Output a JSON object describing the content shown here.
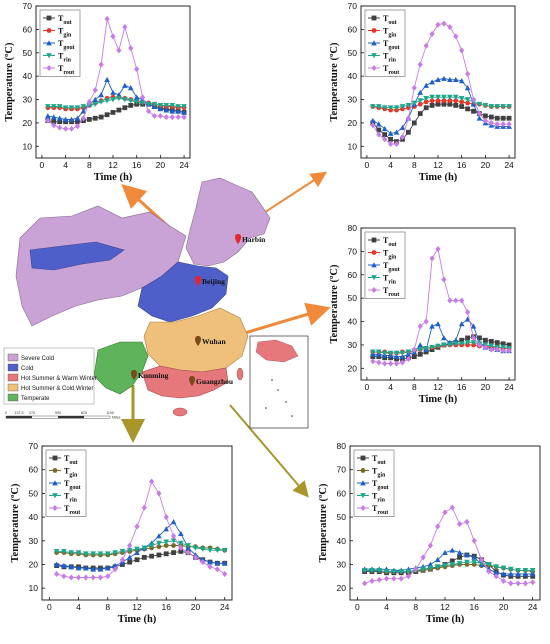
{
  "colors": {
    "T_out": "#404040",
    "T_gin": "#e8372a",
    "T_gout": "#1f5fc9",
    "T_rin": "#1fa78b",
    "T_rout": "#c77ce8",
    "T_gin_alt": "#7a6a2a",
    "arrow_orange": "#f08a3a",
    "arrow_olive": "#a8962a",
    "zone_severe_cold": "#c9a2d6",
    "zone_cold": "#4f5fc9",
    "zone_hot_summer_warm_winter": "#e6777a",
    "zone_hot_summer_cold_winter": "#eec07a",
    "zone_temperate": "#5fb35a"
  },
  "map": {
    "cities": [
      {
        "name": "Harbin"
      },
      {
        "name": "Beijing"
      },
      {
        "name": "Wuhan"
      },
      {
        "name": "Kunming"
      },
      {
        "name": "Guangzhou"
      }
    ],
    "legend": [
      {
        "label": "Severe Cold",
        "color_key": "zone_severe_cold"
      },
      {
        "label": "Cold",
        "color_key": "zone_cold"
      },
      {
        "label": "Hot Summer & Warm Winter",
        "color_key": "zone_hot_summer_warm_winter"
      },
      {
        "label": "Hot Summer & Cold Winter",
        "color_key": "zone_hot_summer_cold_winter"
      },
      {
        "label": "Temperate",
        "color_key": "zone_temperate"
      }
    ],
    "scale_ticks": [
      "0",
      "137.5",
      "275",
      "550",
      "825",
      "1100"
    ],
    "scale_unit": "Miles"
  },
  "chart_data": [
    {
      "type": "line",
      "panel": "top-left",
      "xlabel": "Time (h)",
      "ylabel": "Temperature (ºC)",
      "xlim": [
        -1,
        25
      ],
      "ylim": [
        5,
        70
      ],
      "xticks": [
        0,
        4,
        8,
        12,
        16,
        20,
        24
      ],
      "yticks": [
        10,
        20,
        30,
        40,
        50,
        60,
        70
      ],
      "x": [
        1,
        2,
        3,
        4,
        5,
        6,
        7,
        8,
        9,
        10,
        11,
        12,
        13,
        14,
        15,
        16,
        17,
        18,
        19,
        20,
        21,
        22,
        23,
        24
      ],
      "series": [
        {
          "name": "T_out",
          "color_key": "T_out",
          "marker": "square",
          "values": [
            21,
            20.5,
            20.5,
            20.5,
            20.5,
            20.5,
            21,
            21.5,
            22,
            22.5,
            23.5,
            24.5,
            25.5,
            26.5,
            27.5,
            28,
            28,
            28,
            27,
            26.5,
            26,
            25.5,
            25,
            24.5
          ]
        },
        {
          "name": "T_gin",
          "color_key": "T_gin",
          "marker": "circle",
          "values": [
            26.5,
            26.5,
            26.5,
            26,
            26,
            26,
            26.5,
            27.5,
            28.5,
            29.5,
            30.5,
            31,
            31,
            30.5,
            30,
            29.5,
            29,
            28.5,
            28,
            27.5,
            27,
            27,
            26.5,
            26.5
          ]
        },
        {
          "name": "T_gout",
          "color_key": "T_gout",
          "marker": "triangle",
          "values": [
            23,
            22.5,
            22,
            21.5,
            21.5,
            22,
            25,
            28,
            30,
            32,
            38.5,
            33,
            32,
            36,
            35,
            31,
            30,
            28,
            27,
            26,
            25.5,
            25,
            25,
            24.5
          ]
        },
        {
          "name": "T_rin",
          "color_key": "T_rin",
          "marker": "triangle-down",
          "values": [
            27,
            27,
            27,
            26.5,
            26.5,
            26.5,
            27,
            27.5,
            28,
            29,
            29.5,
            30,
            30.5,
            30,
            29.5,
            29,
            28.5,
            28,
            28,
            27.5,
            27.5,
            27.5,
            27,
            27
          ]
        },
        {
          "name": "T_rout",
          "color_key": "T_rout",
          "marker": "diamond",
          "values": [
            21,
            19,
            18,
            17.5,
            17.5,
            18.5,
            22,
            29,
            34,
            45,
            64.5,
            57,
            51,
            61,
            52,
            43,
            31,
            25,
            23,
            23,
            22.5,
            22.5,
            22.5,
            22.5
          ]
        }
      ]
    },
    {
      "type": "line",
      "panel": "top-right",
      "xlabel": "Time (h)",
      "ylabel": "Temperature (ºC)",
      "xlim": [
        -1,
        25
      ],
      "ylim": [
        5,
        70
      ],
      "xticks": [
        0,
        4,
        8,
        12,
        16,
        20,
        24
      ],
      "yticks": [
        10,
        20,
        30,
        40,
        50,
        60,
        70
      ],
      "x": [
        1,
        2,
        3,
        4,
        5,
        6,
        7,
        8,
        9,
        10,
        11,
        12,
        13,
        14,
        15,
        16,
        17,
        18,
        19,
        20,
        21,
        22,
        23,
        24
      ],
      "series": [
        {
          "name": "T_out",
          "color_key": "T_out",
          "marker": "square",
          "values": [
            20,
            17,
            15,
            13,
            12,
            13,
            16,
            20,
            24,
            26.5,
            27.5,
            28,
            28,
            28,
            27.5,
            27,
            26,
            25,
            24,
            23,
            22.5,
            22,
            22,
            22
          ]
        },
        {
          "name": "T_gin",
          "color_key": "T_gin",
          "marker": "circle",
          "values": [
            27,
            26.5,
            26,
            25.5,
            25.5,
            26,
            26.5,
            27,
            28,
            29,
            29.5,
            29.5,
            29.5,
            29.5,
            29.5,
            29,
            28.5,
            28,
            28,
            27.5,
            27,
            27,
            27,
            27
          ]
        },
        {
          "name": "T_gout",
          "color_key": "T_gout",
          "marker": "triangle",
          "values": [
            21,
            19.5,
            17.5,
            15.5,
            16,
            18,
            22,
            28,
            33,
            36,
            37.5,
            38.5,
            39,
            38.5,
            38.5,
            38,
            35,
            28,
            22,
            20,
            19,
            18.5,
            18.5,
            18.5
          ]
        },
        {
          "name": "T_rin",
          "color_key": "T_rin",
          "marker": "triangle-down",
          "values": [
            27,
            27,
            26.5,
            26.5,
            26.5,
            27,
            27.5,
            28.5,
            29.5,
            30.5,
            31,
            31,
            31,
            31,
            31,
            30.5,
            30,
            29,
            28,
            27.5,
            27,
            27,
            27,
            27
          ]
        },
        {
          "name": "T_rout",
          "color_key": "T_rout",
          "marker": "diamond",
          "values": [
            19,
            15,
            13,
            11,
            11,
            14,
            22,
            35,
            45,
            53,
            58,
            62,
            62.5,
            61,
            57,
            51,
            41,
            30,
            24,
            21,
            20,
            19.5,
            19.5,
            19.5
          ]
        }
      ]
    },
    {
      "type": "line",
      "panel": "middle-right",
      "xlabel": "Time (h)",
      "ylabel": "Temperature (ºC)",
      "xlim": [
        -1,
        25
      ],
      "ylim": [
        15,
        80
      ],
      "xticks": [
        0,
        4,
        8,
        12,
        16,
        20,
        24
      ],
      "yticks": [
        20,
        30,
        40,
        50,
        60,
        70,
        80
      ],
      "x": [
        1,
        2,
        3,
        4,
        5,
        6,
        7,
        8,
        9,
        10,
        11,
        12,
        13,
        14,
        15,
        16,
        17,
        18,
        19,
        20,
        21,
        22,
        23,
        24
      ],
      "series": [
        {
          "name": "T_out",
          "color_key": "T_out",
          "marker": "square",
          "values": [
            25,
            25,
            24.5,
            24.5,
            24,
            24,
            24.5,
            25,
            26,
            27,
            28,
            29,
            30,
            30.5,
            31,
            32,
            33,
            33.5,
            33,
            32,
            31.5,
            31,
            30.5,
            30
          ]
        },
        {
          "name": "T_gin",
          "color_key": "T_gin",
          "marker": "circle",
          "values": [
            27,
            27,
            27,
            26.5,
            26.5,
            27,
            27,
            27.5,
            28,
            28.5,
            29,
            29.5,
            30,
            30,
            30,
            30,
            30,
            30,
            29.5,
            29.5,
            29,
            29,
            28.5,
            28.5
          ]
        },
        {
          "name": "T_gout",
          "color_key": "T_gout",
          "marker": "triangle",
          "values": [
            26,
            26,
            25.5,
            25.5,
            25,
            25,
            26,
            27,
            30,
            28,
            38,
            39,
            33,
            31,
            32,
            39,
            41,
            38,
            31,
            29,
            28.5,
            28,
            27.5,
            27.5
          ]
        },
        {
          "name": "T_rin",
          "color_key": "T_rin",
          "marker": "triangle-down",
          "values": [
            27,
            27,
            26.5,
            26.5,
            26.5,
            26.5,
            27,
            27.5,
            28,
            28.5,
            29,
            29.5,
            30,
            30,
            30.5,
            30.5,
            31,
            31,
            30.5,
            30,
            29.5,
            29,
            29,
            28.5
          ]
        },
        {
          "name": "T_rout",
          "color_key": "T_rout",
          "marker": "diamond",
          "values": [
            23,
            22.5,
            22,
            22,
            22,
            22.5,
            24,
            28,
            38,
            40,
            67,
            71,
            58,
            49,
            49,
            49,
            44,
            33,
            30,
            29,
            28,
            28,
            27.5,
            27.5
          ]
        }
      ]
    },
    {
      "type": "line",
      "panel": "bottom-left",
      "xlabel": "Time (h)",
      "ylabel": "Temperature (ºC)",
      "xlim": [
        -1,
        25
      ],
      "ylim": [
        5,
        70
      ],
      "xticks": [
        0,
        4,
        8,
        12,
        16,
        20,
        24
      ],
      "yticks": [
        10,
        20,
        30,
        40,
        50,
        60,
        70
      ],
      "x": [
        1,
        2,
        3,
        4,
        5,
        6,
        7,
        8,
        9,
        10,
        11,
        12,
        13,
        14,
        15,
        16,
        17,
        18,
        19,
        20,
        21,
        22,
        23,
        24
      ],
      "series": [
        {
          "name": "T_out",
          "color_key": "T_out",
          "marker": "square",
          "values": [
            19.5,
            19,
            19,
            19,
            18.5,
            18.5,
            18.5,
            18.5,
            19,
            20,
            21,
            22,
            23,
            23.5,
            24,
            24.5,
            25,
            25.5,
            25,
            23,
            22,
            21,
            20.5,
            20.5
          ]
        },
        {
          "name": "T_gin",
          "color_key": "T_gin_alt",
          "marker": "circle",
          "values": [
            25,
            25,
            24.5,
            24.5,
            24,
            24,
            24,
            24,
            24.5,
            25,
            25.5,
            26,
            26.5,
            27,
            27.5,
            28,
            28,
            28,
            27.5,
            27.5,
            27,
            27,
            26.5,
            26
          ]
        },
        {
          "name": "T_gout",
          "color_key": "T_gout",
          "marker": "triangle",
          "values": [
            20,
            19.5,
            19,
            18.5,
            18.5,
            18,
            18,
            18.5,
            19.5,
            21,
            23,
            25,
            27,
            29,
            32,
            35,
            38,
            33,
            27,
            24,
            22,
            21,
            20.5,
            20.5
          ]
        },
        {
          "name": "T_rin",
          "color_key": "T_rin",
          "marker": "triangle-down",
          "values": [
            25.5,
            25.5,
            25,
            25,
            24.5,
            24.5,
            24.5,
            24.5,
            25,
            25.5,
            26,
            26.5,
            27,
            28,
            29,
            29.5,
            30,
            29,
            28,
            27,
            26.5,
            26,
            26,
            26
          ]
        },
        {
          "name": "T_rout",
          "color_key": "T_rout",
          "marker": "diamond",
          "values": [
            16,
            15,
            14.5,
            14.5,
            14.5,
            14.5,
            14.5,
            15,
            18,
            22,
            28,
            36,
            44,
            55,
            50,
            40,
            32,
            27,
            25,
            23,
            21,
            19,
            18,
            16
          ]
        }
      ]
    },
    {
      "type": "line",
      "panel": "bottom-right",
      "xlabel": "Time (h)",
      "ylabel": "Temperature (ºC)",
      "xlim": [
        -1,
        25
      ],
      "ylim": [
        15,
        80
      ],
      "xticks": [
        0,
        4,
        8,
        12,
        16,
        20,
        24
      ],
      "yticks": [
        20,
        30,
        40,
        50,
        60,
        70,
        80
      ],
      "x": [
        1,
        2,
        3,
        4,
        5,
        6,
        7,
        8,
        9,
        10,
        11,
        12,
        13,
        14,
        15,
        16,
        17,
        18,
        19,
        20,
        21,
        22,
        23,
        24
      ],
      "series": [
        {
          "name": "T_out",
          "color_key": "T_out",
          "marker": "square",
          "values": [
            27,
            27,
            27,
            26.5,
            26.5,
            26.5,
            26.5,
            27,
            27.5,
            28,
            29,
            30,
            31.5,
            33,
            34,
            33.5,
            32,
            30,
            27,
            25.5,
            25,
            25,
            25,
            25
          ]
        },
        {
          "name": "T_gin",
          "color_key": "T_gin_alt",
          "marker": "circle",
          "values": [
            27.5,
            27.5,
            27.5,
            27,
            27,
            27,
            27,
            27.5,
            27.5,
            28,
            28.5,
            29,
            29.5,
            30,
            30,
            30,
            29.5,
            29.5,
            29,
            28.5,
            28,
            27.5,
            27.5,
            27
          ]
        },
        {
          "name": "T_gout",
          "color_key": "T_gout",
          "marker": "triangle",
          "values": [
            28,
            28,
            28,
            28,
            27.5,
            27.5,
            28,
            28.5,
            29,
            30,
            32,
            35,
            36,
            35,
            34,
            33,
            30,
            28,
            26.5,
            26,
            26,
            26,
            26,
            26
          ]
        },
        {
          "name": "T_rin",
          "color_key": "T_rin",
          "marker": "triangle-down",
          "values": [
            27.5,
            27.5,
            27.5,
            27,
            27,
            27,
            27,
            27.5,
            28,
            28.5,
            29,
            29.5,
            30,
            30.5,
            31,
            31,
            30.5,
            30,
            29,
            28.5,
            28,
            27.5,
            27.5,
            27.5
          ]
        },
        {
          "name": "T_rout",
          "color_key": "T_rout",
          "marker": "diamond",
          "values": [
            22,
            23,
            23.5,
            24,
            24,
            24,
            25,
            28,
            33,
            38,
            46,
            52,
            54,
            47,
            48,
            40,
            32,
            27,
            25,
            23,
            22,
            22,
            22,
            22.5
          ]
        }
      ]
    }
  ]
}
